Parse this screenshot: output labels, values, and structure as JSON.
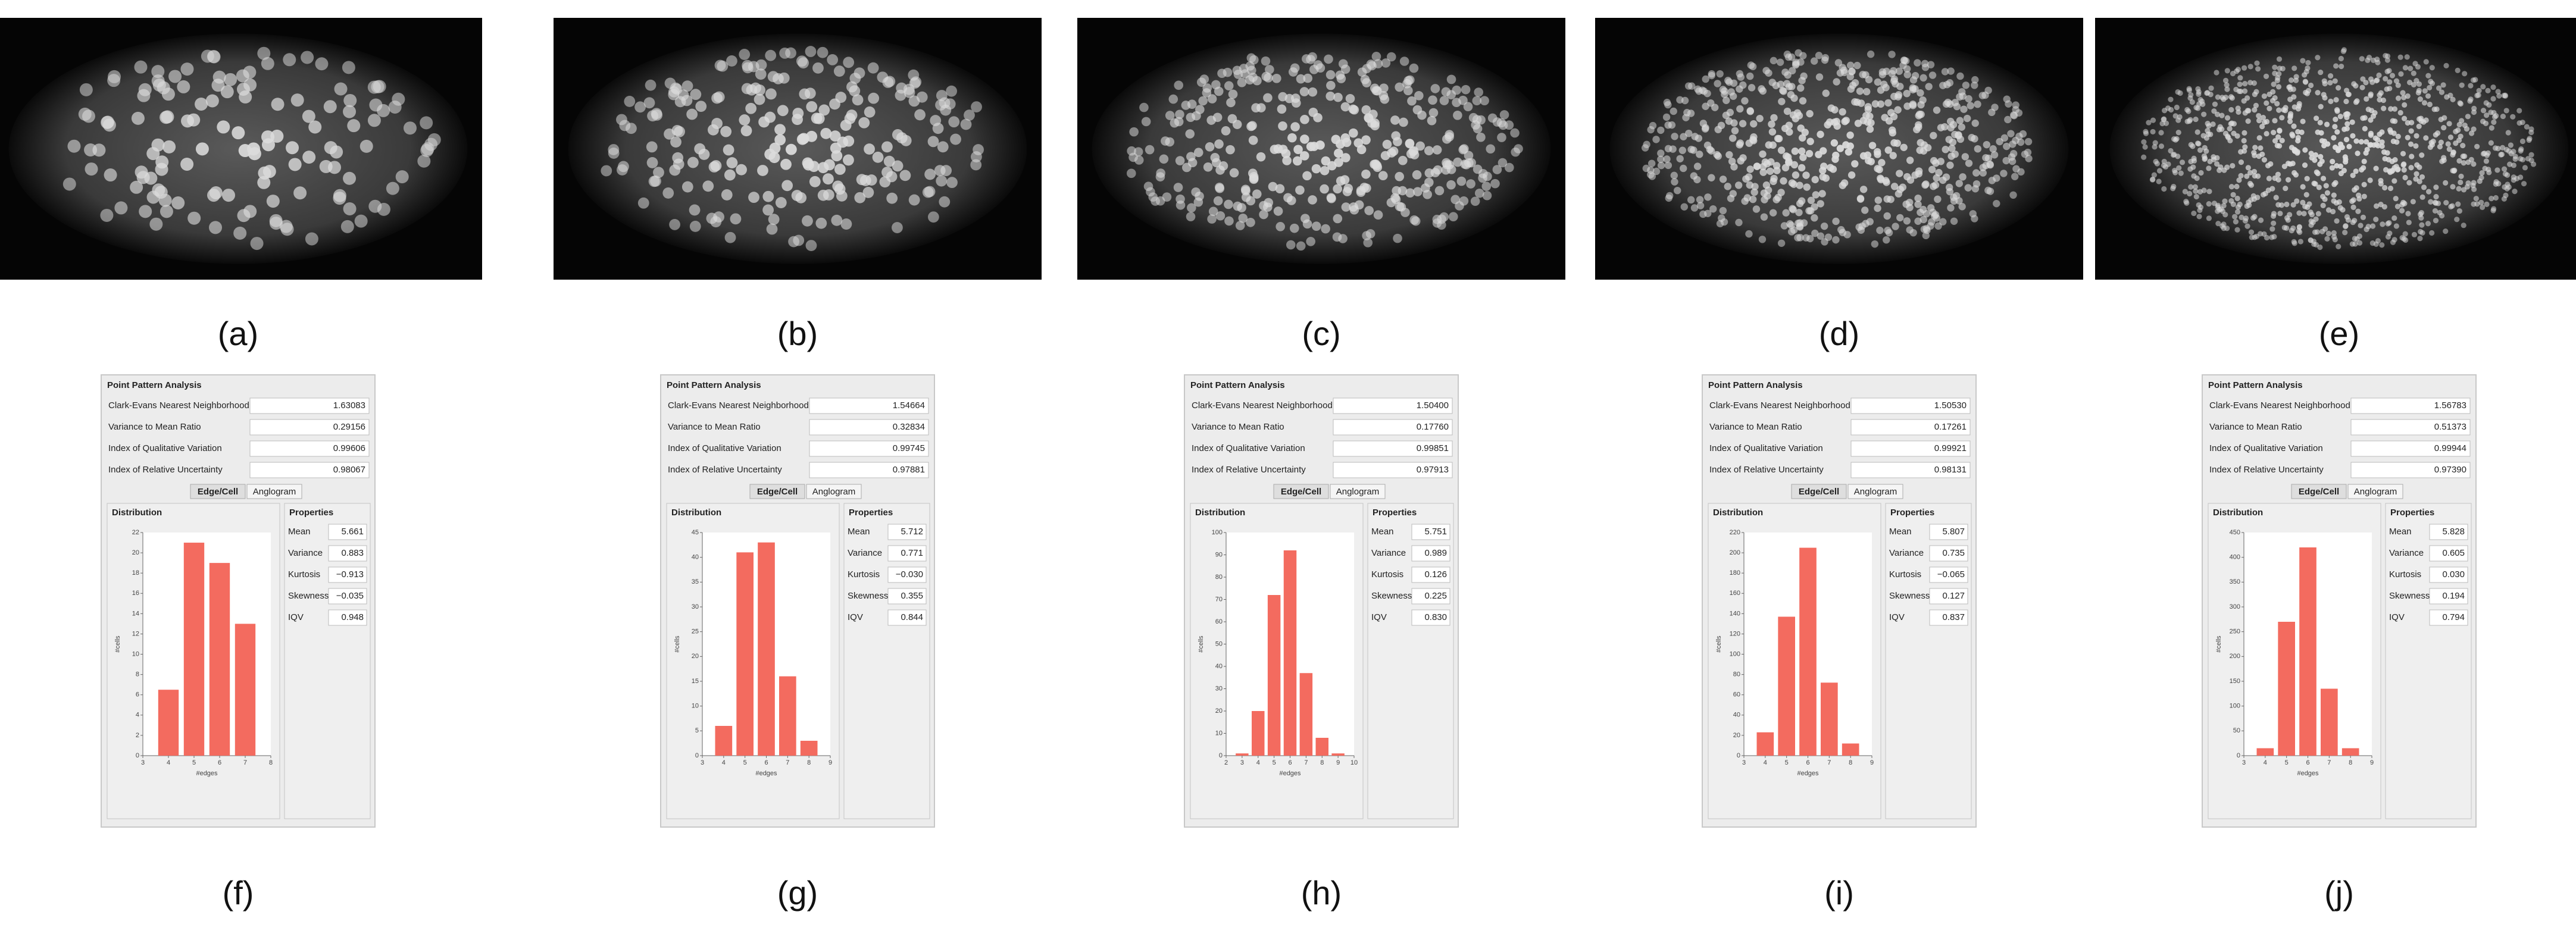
{
  "image_labels": [
    "(a)",
    "(b)",
    "(c)",
    "(d)",
    "(e)"
  ],
  "panel_text": {
    "title": "Point Pattern Analysis",
    "metric_labels": [
      "Clark-Evans Nearest Neighborhood",
      "Variance to Mean Ratio",
      "Index of Qualitative Variation",
      "Index of Relative Uncertainty"
    ],
    "tabs": [
      "Edge/Cell",
      "Anglogram"
    ],
    "distribution_title": "Distribution",
    "properties_title": "Properties",
    "property_labels": [
      "Mean",
      "Variance",
      "Kurtosis",
      "Skewness",
      "IQV"
    ],
    "x_axis_label": "#edges",
    "y_axis_label": "#cells"
  },
  "panels": [
    {
      "label": "(f)",
      "metric_values": [
        "1.63083",
        "0.29156",
        "0.99606",
        "0.98067"
      ],
      "property_values": [
        "5.661",
        "0.883",
        "−0.913",
        "−0.035",
        "0.948"
      ],
      "histogram": {
        "type": "bar",
        "x": [
          4,
          5,
          6,
          7
        ],
        "values": [
          6.5,
          21,
          19,
          13
        ],
        "color": "#f36b5f",
        "xlim": [
          3,
          8
        ],
        "xticks": [
          3,
          4,
          5,
          6,
          7,
          8
        ],
        "ylim": [
          0,
          22
        ],
        "yticks": [
          0,
          2,
          4,
          6,
          8,
          10,
          12,
          14,
          16,
          18,
          20,
          22
        ]
      }
    },
    {
      "label": "(g)",
      "metric_values": [
        "1.54664",
        "0.32834",
        "0.99745",
        "0.97881"
      ],
      "property_values": [
        "5.712",
        "0.771",
        "−0.030",
        "0.355",
        "0.844"
      ],
      "histogram": {
        "type": "bar",
        "x": [
          4,
          5,
          6,
          7,
          8
        ],
        "values": [
          6,
          41,
          43,
          16,
          3
        ],
        "color": "#f36b5f",
        "xlim": [
          3,
          9
        ],
        "xticks": [
          3,
          4,
          5,
          6,
          7,
          8,
          9
        ],
        "ylim": [
          0,
          45
        ],
        "yticks": [
          0,
          5,
          10,
          15,
          20,
          25,
          30,
          35,
          40,
          45
        ]
      }
    },
    {
      "label": "(h)",
      "metric_values": [
        "1.50400",
        "0.17760",
        "0.99851",
        "0.97913"
      ],
      "property_values": [
        "5.751",
        "0.989",
        "0.126",
        "0.225",
        "0.830"
      ],
      "histogram": {
        "type": "bar",
        "x": [
          3,
          4,
          5,
          6,
          7,
          8,
          9
        ],
        "values": [
          1,
          20,
          72,
          92,
          37,
          8,
          1
        ],
        "color": "#f36b5f",
        "xlim": [
          2,
          10
        ],
        "xticks": [
          2,
          3,
          4,
          5,
          6,
          7,
          8,
          9,
          10
        ],
        "ylim": [
          0,
          100
        ],
        "yticks": [
          0,
          10,
          20,
          30,
          40,
          50,
          60,
          70,
          80,
          90,
          100
        ]
      }
    },
    {
      "label": "(i)",
      "metric_values": [
        "1.50530",
        "0.17261",
        "0.99921",
        "0.98131"
      ],
      "property_values": [
        "5.807",
        "0.735",
        "−0.065",
        "0.127",
        "0.837"
      ],
      "histogram": {
        "type": "bar",
        "x": [
          4,
          5,
          6,
          7,
          8
        ],
        "values": [
          23,
          137,
          205,
          72,
          12
        ],
        "color": "#f36b5f",
        "xlim": [
          3,
          9
        ],
        "xticks": [
          3,
          4,
          5,
          6,
          7,
          8,
          9
        ],
        "ylim": [
          0,
          220
        ],
        "yticks": [
          0,
          20,
          40,
          60,
          80,
          100,
          120,
          140,
          160,
          180,
          200,
          220
        ]
      }
    },
    {
      "label": "(j)",
      "metric_values": [
        "1.56783",
        "0.51373",
        "0.99944",
        "0.97390"
      ],
      "property_values": [
        "5.828",
        "0.605",
        "0.030",
        "0.194",
        "0.794"
      ],
      "histogram": {
        "type": "bar",
        "x": [
          4,
          5,
          6,
          7,
          8
        ],
        "values": [
          15,
          270,
          420,
          135,
          15
        ],
        "color": "#f36b5f",
        "xlim": [
          3,
          9
        ],
        "xticks": [
          3,
          4,
          5,
          6,
          7,
          8,
          9
        ],
        "ylim": [
          0,
          450
        ],
        "yticks": [
          0,
          50,
          100,
          150,
          200,
          250,
          300,
          350,
          400,
          450
        ]
      }
    }
  ]
}
